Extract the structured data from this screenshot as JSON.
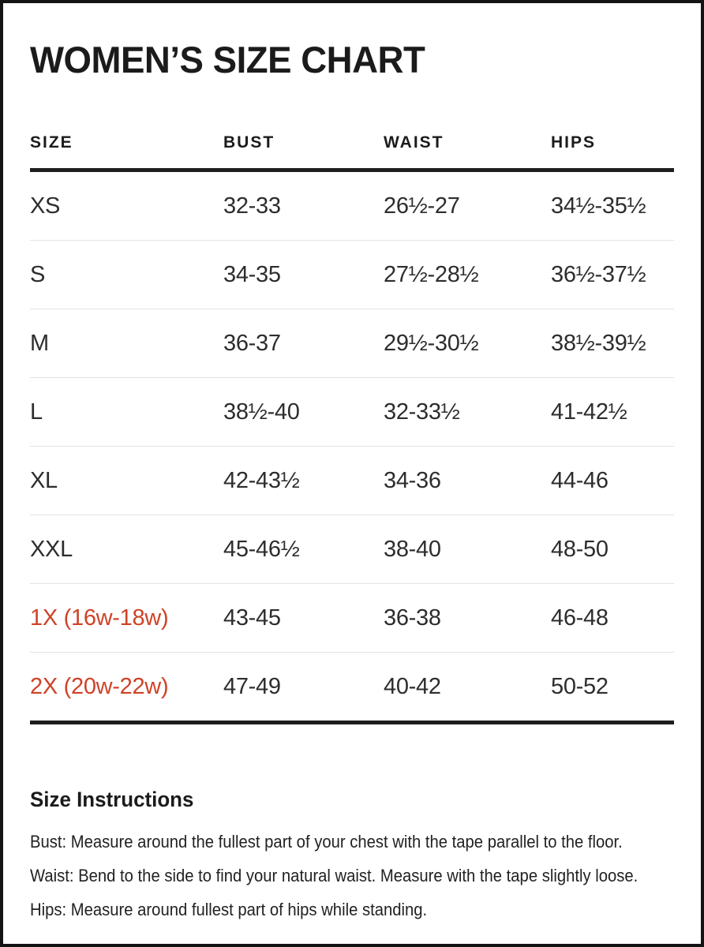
{
  "title": "WOMEN’S SIZE CHART",
  "colors": {
    "accent": "#cf4227",
    "text": "#1f1f1f",
    "divider": "#e3e3e3",
    "rule": "#1e1e1e"
  },
  "chart_data": {
    "type": "table",
    "title": "WOMEN’S SIZE CHART",
    "columns": [
      "SIZE",
      "BUST",
      "WAIST",
      "HIPS"
    ],
    "rows": [
      [
        "XS",
        "32-33",
        "26½-27",
        "34½-35½"
      ],
      [
        "S",
        "34-35",
        "27½-28½",
        "36½-37½"
      ],
      [
        "M",
        "36-37",
        "29½-30½",
        "38½-39½"
      ],
      [
        "L",
        "38½-40",
        "32-33½",
        "41-42½"
      ],
      [
        "XL",
        "42-43½",
        "34-36",
        "44-46"
      ],
      [
        "XXL",
        "45-46½",
        "38-40",
        "48-50"
      ],
      [
        "1X (16w-18w)",
        "43-45",
        "36-38",
        "46-48"
      ],
      [
        "2X (20w-22w)",
        "47-49",
        "40-42",
        "50-52"
      ]
    ]
  },
  "table": {
    "columns": [
      "SIZE",
      "BUST",
      "WAIST",
      "HIPS"
    ],
    "keys": [
      "size",
      "bust",
      "waist",
      "hips"
    ],
    "rows": [
      {
        "size": "XS",
        "bust": "32-33",
        "waist": "26½-27",
        "hips": "34½-35½",
        "highlight": false
      },
      {
        "size": "S",
        "bust": "34-35",
        "waist": "27½-28½",
        "hips": "36½-37½",
        "highlight": false
      },
      {
        "size": "M",
        "bust": "36-37",
        "waist": "29½-30½",
        "hips": "38½-39½",
        "highlight": false
      },
      {
        "size": "L",
        "bust": "38½-40",
        "waist": "32-33½",
        "hips": "41-42½",
        "highlight": false
      },
      {
        "size": "XL",
        "bust": "42-43½",
        "waist": "34-36",
        "hips": "44-46",
        "highlight": false
      },
      {
        "size": "XXL",
        "bust": "45-46½",
        "waist": "38-40",
        "hips": "48-50",
        "highlight": false
      },
      {
        "size": "1X (16w-18w)",
        "bust": "43-45",
        "waist": "36-38",
        "hips": "46-48",
        "highlight": true
      },
      {
        "size": "2X (20w-22w)",
        "bust": "47-49",
        "waist": "40-42",
        "hips": "50-52",
        "highlight": true
      }
    ]
  },
  "instructions": {
    "heading": "Size Instructions",
    "lines": [
      "Bust: Measure around the fullest part of your chest with the tape parallel to the floor.",
      "Waist: Bend to the side to find your natural waist. Measure with the tape slightly loose.",
      "Hips: Measure around fullest part of hips while standing."
    ]
  }
}
